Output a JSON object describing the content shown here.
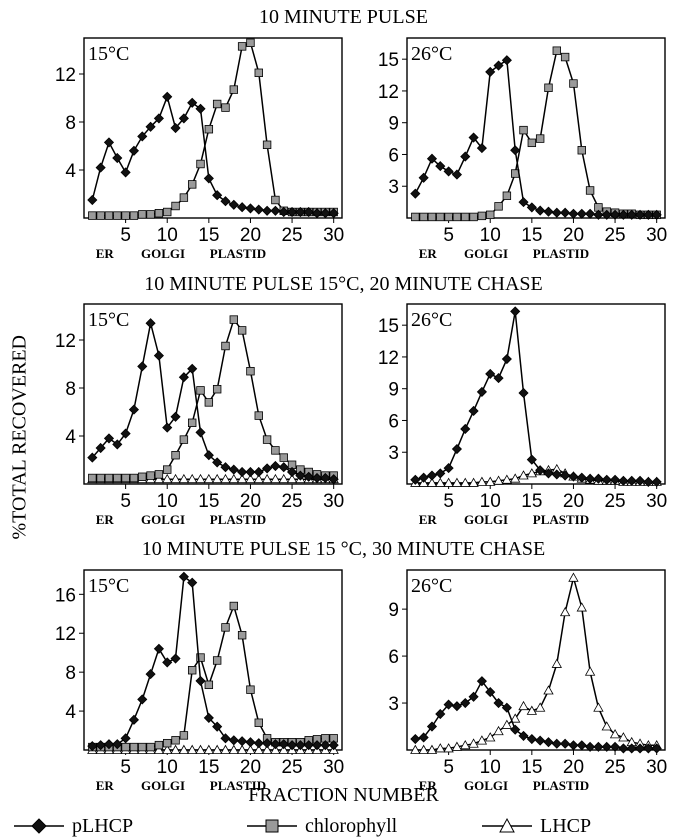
{
  "figure": {
    "ylabel": "%TOTAL RECOVERED",
    "xlabel": "FRACTION NUMBER",
    "row_titles": [
      "10 MINUTE PULSE",
      "10 MINUTE PULSE 15°C, 20 MINUTE CHASE",
      "10 MINUTE PULSE 15 °C, 30 MINUTE CHASE"
    ],
    "region_labels": [
      "ER",
      "GOLGI",
      "PLASTID"
    ],
    "region_positions": [
      2.5,
      9.5,
      18.5
    ],
    "legend": [
      {
        "name": "pLHCP",
        "marker": "diamond"
      },
      {
        "name": "chlorophyll",
        "marker": "square"
      },
      {
        "name": "LHCP",
        "marker": "triangle"
      }
    ],
    "colors": {
      "pLHCP": "#111111",
      "chlorophyll": "#9a9a9a",
      "LHCP": "#ffffff"
    }
  },
  "chart_data": [
    {
      "type": "line",
      "label": "15°C",
      "row": 0,
      "col": 0,
      "xlim": [
        0,
        31
      ],
      "ylim": [
        0,
        15
      ],
      "xticks": [
        5,
        10,
        15,
        20,
        25,
        30
      ],
      "yticks": [
        4,
        8,
        12
      ],
      "grid": false,
      "series": [
        {
          "name": "pLHCP",
          "marker": "diamond",
          "x": [
            1,
            2,
            3,
            4,
            5,
            6,
            7,
            8,
            9,
            10,
            11,
            12,
            13,
            14,
            15,
            16,
            17,
            18,
            19,
            20,
            21,
            22,
            23,
            24,
            25,
            26,
            27,
            28,
            29,
            30
          ],
          "y": [
            1.5,
            4.2,
            6.3,
            5.0,
            3.8,
            5.6,
            6.8,
            7.6,
            8.3,
            10.1,
            7.5,
            8.3,
            9.6,
            9.1,
            3.3,
            1.9,
            1.4,
            1.1,
            0.9,
            0.8,
            0.7,
            0.6,
            0.6,
            0.5,
            0.5,
            0.5,
            0.5,
            0.4,
            0.4,
            0.4
          ]
        },
        {
          "name": "chlorophyll",
          "marker": "square",
          "x": [
            1,
            2,
            3,
            4,
            5,
            6,
            7,
            8,
            9,
            10,
            11,
            12,
            13,
            14,
            15,
            16,
            17,
            18,
            19,
            20,
            21,
            22,
            23,
            24,
            25,
            26,
            27,
            28,
            29,
            30
          ],
          "y": [
            0.2,
            0.2,
            0.2,
            0.2,
            0.2,
            0.2,
            0.3,
            0.3,
            0.4,
            0.5,
            1.0,
            1.7,
            2.8,
            4.5,
            7.4,
            9.5,
            9.2,
            10.7,
            14.3,
            14.6,
            12.1,
            6.1,
            1.5,
            0.6,
            0.5,
            0.5,
            0.5,
            0.5,
            0.5,
            0.5
          ]
        }
      ]
    },
    {
      "type": "line",
      "label": "26°C",
      "row": 0,
      "col": 1,
      "xlim": [
        0,
        31
      ],
      "ylim": [
        0,
        17
      ],
      "xticks": [
        5,
        10,
        15,
        20,
        25,
        30
      ],
      "yticks": [
        3,
        6,
        9,
        12,
        15
      ],
      "grid": false,
      "series": [
        {
          "name": "pLHCP",
          "marker": "diamond",
          "x": [
            1,
            2,
            3,
            4,
            5,
            6,
            7,
            8,
            9,
            10,
            11,
            12,
            13,
            14,
            15,
            16,
            17,
            18,
            19,
            20,
            21,
            22,
            23,
            24,
            25,
            26,
            27,
            28,
            29,
            30
          ],
          "y": [
            2.3,
            3.8,
            5.6,
            4.9,
            4.4,
            4.1,
            5.8,
            7.6,
            6.6,
            13.8,
            14.4,
            14.9,
            6.4,
            1.5,
            1.0,
            0.7,
            0.6,
            0.5,
            0.5,
            0.4,
            0.4,
            0.4,
            0.3,
            0.3,
            0.3,
            0.3,
            0.3,
            0.3,
            0.3,
            0.3
          ]
        },
        {
          "name": "chlorophyll",
          "marker": "square",
          "x": [
            1,
            2,
            3,
            4,
            5,
            6,
            7,
            8,
            9,
            10,
            11,
            12,
            13,
            14,
            15,
            16,
            17,
            18,
            19,
            20,
            21,
            22,
            23,
            24,
            25,
            26,
            27,
            28,
            29,
            30
          ],
          "y": [
            0.1,
            0.1,
            0.1,
            0.1,
            0.1,
            0.1,
            0.1,
            0.1,
            0.2,
            0.3,
            1.1,
            2.1,
            4.2,
            8.3,
            7.1,
            7.5,
            12.3,
            15.8,
            15.2,
            12.7,
            6.4,
            2.6,
            1.0,
            0.6,
            0.5,
            0.4,
            0.4,
            0.3,
            0.3,
            0.3
          ]
        }
      ]
    },
    {
      "type": "line",
      "label": "15°C",
      "row": 1,
      "col": 0,
      "xlim": [
        0,
        31
      ],
      "ylim": [
        0,
        15
      ],
      "xticks": [
        5,
        10,
        15,
        20,
        25,
        30
      ],
      "yticks": [
        4,
        8,
        12
      ],
      "grid": false,
      "series": [
        {
          "name": "pLHCP",
          "marker": "diamond",
          "x": [
            1,
            2,
            3,
            4,
            5,
            6,
            7,
            8,
            9,
            10,
            11,
            12,
            13,
            14,
            15,
            16,
            17,
            18,
            19,
            20,
            21,
            22,
            23,
            24,
            25,
            26,
            27,
            28,
            29,
            30
          ],
          "y": [
            2.2,
            3.0,
            3.8,
            3.3,
            4.2,
            6.2,
            9.8,
            13.4,
            10.7,
            4.7,
            5.6,
            8.9,
            9.6,
            4.3,
            2.4,
            1.8,
            1.4,
            1.2,
            1.0,
            1.0,
            1.0,
            1.3,
            1.5,
            1.4,
            1.0,
            0.7,
            0.6,
            0.5,
            0.5,
            0.4
          ]
        },
        {
          "name": "chlorophyll",
          "marker": "square",
          "x": [
            1,
            2,
            3,
            4,
            5,
            6,
            7,
            8,
            9,
            10,
            11,
            12,
            13,
            14,
            15,
            16,
            17,
            18,
            19,
            20,
            21,
            22,
            23,
            24,
            25,
            26,
            27,
            28,
            29,
            30
          ],
          "y": [
            0.5,
            0.5,
            0.5,
            0.5,
            0.5,
            0.5,
            0.6,
            0.7,
            0.8,
            1.2,
            2.4,
            3.7,
            5.1,
            7.8,
            6.8,
            7.9,
            11.5,
            13.7,
            12.8,
            9.4,
            5.7,
            3.7,
            2.8,
            2.2,
            1.6,
            1.2,
            1.0,
            0.8,
            0.7,
            0.7
          ]
        },
        {
          "name": "LHCP",
          "marker": "triangle",
          "x": [
            1,
            2,
            3,
            4,
            5,
            6,
            7,
            8,
            9,
            10,
            11,
            12,
            13,
            14,
            15,
            16,
            17,
            18,
            19,
            20,
            21,
            22,
            23,
            24,
            25,
            26,
            27,
            28,
            29,
            30
          ],
          "y": [
            0.4,
            0.4,
            0.4,
            0.4,
            0.4,
            0.4,
            0.4,
            0.4,
            0.4,
            0.4,
            0.4,
            0.4,
            0.4,
            0.4,
            0.4,
            0.4,
            0.4,
            0.4,
            0.4,
            0.4,
            0.4,
            0.4,
            0.4,
            0.4,
            0.4,
            0.4,
            0.4,
            0.4,
            0.4,
            0.4
          ]
        }
      ]
    },
    {
      "type": "line",
      "label": "26°C",
      "row": 1,
      "col": 1,
      "xlim": [
        0,
        31
      ],
      "ylim": [
        0,
        17
      ],
      "xticks": [
        5,
        10,
        15,
        20,
        25,
        30
      ],
      "yticks": [
        3,
        6,
        9,
        12,
        15
      ],
      "grid": false,
      "series": [
        {
          "name": "pLHCP",
          "marker": "diamond",
          "x": [
            1,
            2,
            3,
            4,
            5,
            6,
            7,
            8,
            9,
            10,
            11,
            12,
            13,
            14,
            15,
            16,
            17,
            18,
            19,
            20,
            21,
            22,
            23,
            24,
            25,
            26,
            27,
            28,
            29,
            30
          ],
          "y": [
            0.4,
            0.6,
            0.8,
            1.0,
            1.5,
            3.3,
            5.2,
            6.9,
            8.7,
            10.4,
            10.0,
            11.8,
            16.3,
            8.6,
            2.3,
            1.3,
            1.0,
            0.9,
            0.8,
            0.7,
            0.6,
            0.5,
            0.5,
            0.4,
            0.4,
            0.3,
            0.3,
            0.3,
            0.2,
            0.2
          ]
        },
        {
          "name": "LHCP",
          "marker": "triangle",
          "x": [
            1,
            2,
            3,
            4,
            5,
            6,
            7,
            8,
            9,
            10,
            11,
            12,
            13,
            14,
            15,
            16,
            17,
            18,
            19,
            20,
            21,
            22,
            23,
            24,
            25,
            26,
            27,
            28,
            29,
            30
          ],
          "y": [
            0.1,
            0.1,
            0.1,
            0.1,
            0.1,
            0.1,
            0.1,
            0.1,
            0.2,
            0.2,
            0.3,
            0.4,
            0.5,
            0.8,
            1.0,
            1.2,
            1.3,
            1.4,
            1.0,
            0.7,
            0.5,
            0.4,
            0.3,
            0.3,
            0.3,
            0.2,
            0.2,
            0.2,
            0.2,
            0.2
          ]
        }
      ]
    },
    {
      "type": "line",
      "label": "15°C",
      "row": 2,
      "col": 0,
      "xlim": [
        0,
        31
      ],
      "ylim": [
        0,
        18.5
      ],
      "xticks": [
        5,
        10,
        15,
        20,
        25,
        30
      ],
      "yticks": [
        4,
        8,
        12,
        16
      ],
      "grid": false,
      "series": [
        {
          "name": "pLHCP",
          "marker": "diamond",
          "x": [
            1,
            2,
            3,
            4,
            5,
            6,
            7,
            8,
            9,
            10,
            11,
            12,
            13,
            14,
            15,
            16,
            17,
            18,
            19,
            20,
            21,
            22,
            23,
            24,
            25,
            26,
            27,
            28,
            29,
            30
          ],
          "y": [
            0.4,
            0.5,
            0.6,
            0.6,
            1.2,
            3.1,
            5.2,
            7.8,
            10.4,
            9.0,
            9.4,
            17.8,
            17.2,
            7.1,
            3.3,
            2.4,
            1.2,
            1.0,
            0.9,
            0.8,
            0.7,
            0.7,
            0.6,
            0.6,
            0.5,
            0.5,
            0.5,
            0.5,
            0.5,
            0.5
          ]
        },
        {
          "name": "chlorophyll",
          "marker": "square",
          "x": [
            1,
            2,
            3,
            4,
            5,
            6,
            7,
            8,
            9,
            10,
            11,
            12,
            13,
            14,
            15,
            16,
            17,
            18,
            19,
            20,
            21,
            22,
            23,
            24,
            25,
            26,
            27,
            28,
            29,
            30
          ],
          "y": [
            0.3,
            0.3,
            0.3,
            0.3,
            0.3,
            0.3,
            0.3,
            0.3,
            0.5,
            0.7,
            1.0,
            1.5,
            8.2,
            9.5,
            6.7,
            9.2,
            12.6,
            14.8,
            11.8,
            6.2,
            2.8,
            1.2,
            0.8,
            0.8,
            0.8,
            0.8,
            1.0,
            1.1,
            1.2,
            1.2
          ]
        },
        {
          "name": "LHCP",
          "marker": "triangle",
          "x": [
            1,
            2,
            3,
            4,
            5,
            6,
            7,
            8,
            9,
            10,
            11,
            12,
            13,
            14,
            15,
            16,
            17,
            18,
            19,
            20,
            21,
            22,
            23,
            24,
            25,
            26,
            27,
            28,
            29,
            30
          ],
          "y": [
            0.0,
            0.0,
            0.0,
            0.0,
            0.0,
            0.0,
            0.0,
            0.0,
            0.0,
            0.0,
            0.0,
            0.0,
            0.0,
            0.0,
            0.0,
            0.0,
            0.0,
            0.0,
            0.0,
            0.0,
            0.0,
            0.0,
            0.0,
            0.0,
            0.0,
            0.0,
            0.0,
            0.0,
            0.0,
            0.0
          ]
        }
      ]
    },
    {
      "type": "line",
      "label": "26°C",
      "row": 2,
      "col": 1,
      "xlim": [
        0,
        31
      ],
      "ylim": [
        0,
        11.5
      ],
      "xticks": [
        5,
        10,
        15,
        20,
        25,
        30
      ],
      "yticks": [
        3,
        6,
        9
      ],
      "grid": false,
      "series": [
        {
          "name": "pLHCP",
          "marker": "diamond",
          "x": [
            1,
            2,
            3,
            4,
            5,
            6,
            7,
            8,
            9,
            10,
            11,
            12,
            13,
            14,
            15,
            16,
            17,
            18,
            19,
            20,
            21,
            22,
            23,
            24,
            25,
            26,
            27,
            28,
            29,
            30
          ],
          "y": [
            0.7,
            0.8,
            1.5,
            2.3,
            2.9,
            2.8,
            3.0,
            3.4,
            4.4,
            3.7,
            3.0,
            2.7,
            1.3,
            0.9,
            0.7,
            0.6,
            0.5,
            0.4,
            0.4,
            0.3,
            0.3,
            0.2,
            0.2,
            0.2,
            0.2,
            0.1,
            0.1,
            0.1,
            0.1,
            0.1
          ]
        },
        {
          "name": "LHCP",
          "marker": "triangle",
          "x": [
            1,
            2,
            3,
            4,
            5,
            6,
            7,
            8,
            9,
            10,
            11,
            12,
            13,
            14,
            15,
            16,
            17,
            18,
            19,
            20,
            21,
            22,
            23,
            24,
            25,
            26,
            27,
            28,
            29,
            30
          ],
          "y": [
            0.0,
            0.0,
            0.0,
            0.1,
            0.1,
            0.2,
            0.3,
            0.4,
            0.6,
            0.8,
            1.2,
            1.6,
            2.0,
            2.8,
            2.5,
            2.7,
            3.8,
            5.5,
            8.8,
            11.0,
            9.1,
            5.0,
            2.7,
            1.5,
            1.0,
            0.8,
            0.5,
            0.4,
            0.3,
            0.3
          ]
        }
      ]
    }
  ]
}
